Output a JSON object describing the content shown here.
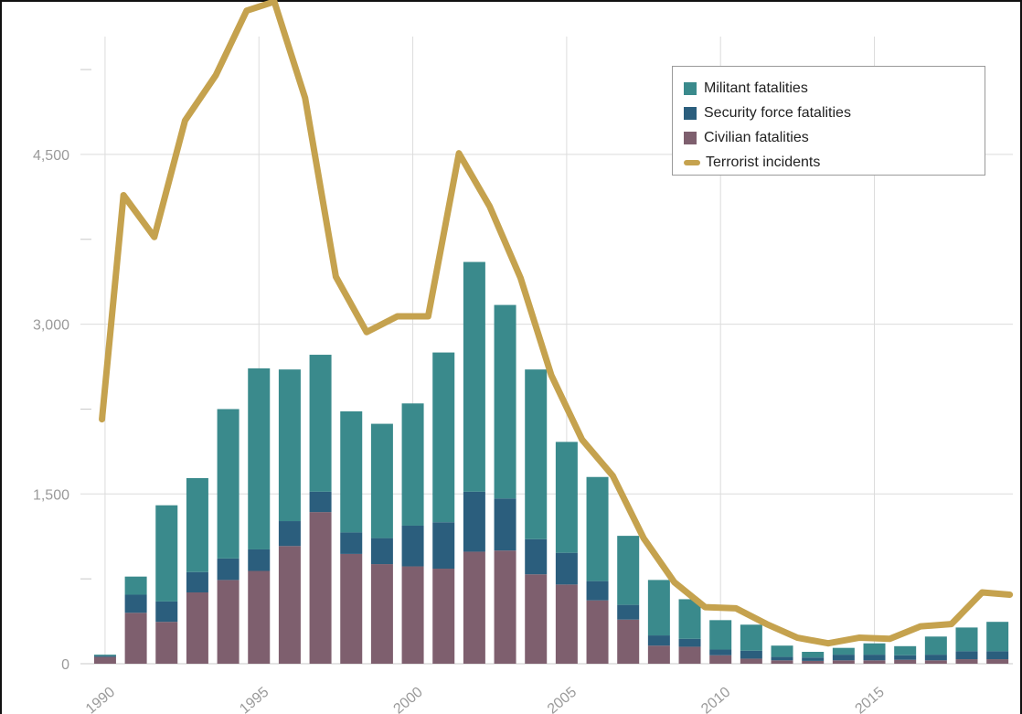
{
  "chart_data": {
    "type": "bar",
    "subtype": "stacked-bar-with-line",
    "title": "",
    "xlabel": "",
    "ylabel": "",
    "ylim": [
      0,
      5800
    ],
    "y_ticks": [
      0,
      1500,
      3000,
      4500
    ],
    "y_tick_labels": [
      "0",
      "1,500",
      "3,000",
      "4,500"
    ],
    "x_ticks": [
      1990,
      1995,
      2000,
      2005,
      2010,
      2015
    ],
    "x_tick_labels": [
      "1990",
      "1995",
      "2000",
      "2005",
      "2010",
      "2015"
    ],
    "xlim": [
      1989.2,
      2019.5
    ],
    "grid": true,
    "legend_position": "top-right",
    "years": [
      1990,
      1991,
      1992,
      1993,
      1994,
      1995,
      1996,
      1997,
      1998,
      1999,
      2000,
      2001,
      2002,
      2003,
      2004,
      2005,
      2006,
      2007,
      2008,
      2009,
      2010,
      2011,
      2012,
      2013,
      2014,
      2015,
      2016,
      2017,
      2018,
      2019
    ],
    "series": [
      {
        "name": "Civilian fatalities",
        "color": "#7e5f6e",
        "values": [
          60,
          450,
          370,
          630,
          740,
          820,
          1040,
          1340,
          970,
          880,
          860,
          840,
          990,
          1000,
          790,
          700,
          560,
          390,
          160,
          150,
          75,
          45,
          30,
          25,
          30,
          30,
          35,
          30,
          40,
          40
        ]
      },
      {
        "name": "Security force fatalities",
        "color": "#2b5e7d",
        "values": [
          10,
          160,
          180,
          180,
          190,
          190,
          220,
          180,
          190,
          230,
          360,
          410,
          530,
          460,
          310,
          280,
          170,
          130,
          90,
          70,
          50,
          70,
          30,
          30,
          50,
          50,
          40,
          50,
          70,
          70
        ]
      },
      {
        "name": "Militant fatalities",
        "color": "#3a8a8c",
        "values": [
          10,
          160,
          850,
          830,
          1320,
          1600,
          1340,
          1210,
          1070,
          1010,
          1080,
          1500,
          2030,
          1710,
          1500,
          980,
          920,
          610,
          490,
          350,
          260,
          230,
          100,
          50,
          60,
          100,
          80,
          160,
          210,
          260
        ]
      }
    ],
    "line_series": {
      "name": "Terrorist incidents",
      "color": "#c5a24e",
      "values": [
        2160,
        4140,
        3770,
        4800,
        5200,
        5770,
        5850,
        5000,
        3420,
        2930,
        3070,
        3070,
        4510,
        4040,
        3410,
        2550,
        1980,
        1660,
        1110,
        720,
        500,
        490,
        350,
        230,
        180,
        230,
        220,
        330,
        350,
        630,
        610
      ]
    },
    "line_years": [
      1989.9,
      1990.6,
      1991.6,
      1992.6,
      1993.6,
      1994.6,
      1995.5,
      1996.5,
      1997.5,
      1998.5,
      1999.5,
      2000.5,
      2001.5,
      2002.5,
      2003.5,
      2004.5,
      2005.5,
      2006.5,
      2007.5,
      2008.5,
      2009.5,
      2010.5,
      2011.5,
      2012.5,
      2013.5,
      2014.5,
      2015.5,
      2016.5,
      2017.5,
      2018.5,
      2019.4
    ]
  }
}
